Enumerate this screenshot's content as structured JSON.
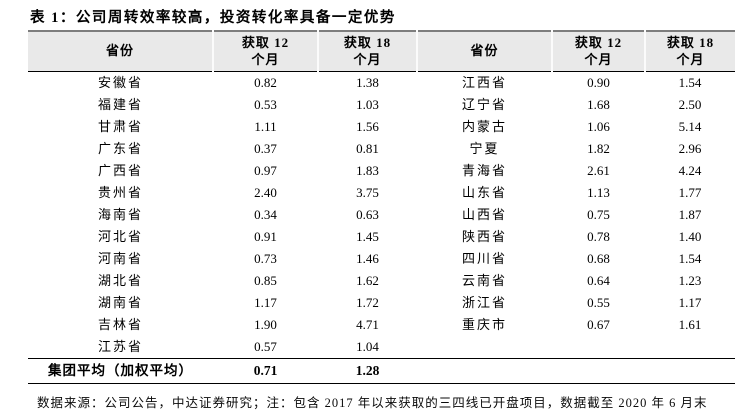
{
  "title": "表 1：公司周转效率较高，投资转化率具备一定优势",
  "table": {
    "headers": [
      "省份",
      "获取 12\n个月",
      "获取 18\n个月",
      "省份",
      "获取 12\n个月",
      "获取 18\n个月"
    ],
    "rows": [
      [
        "安徽省",
        "0.82",
        "1.38",
        "江西省",
        "0.90",
        "1.54"
      ],
      [
        "福建省",
        "0.53",
        "1.03",
        "辽宁省",
        "1.68",
        "2.50"
      ],
      [
        "甘肃省",
        "1.11",
        "1.56",
        "内蒙古",
        "1.06",
        "5.14"
      ],
      [
        "广东省",
        "0.37",
        "0.81",
        "宁夏",
        "1.82",
        "2.96"
      ],
      [
        "广西省",
        "0.97",
        "1.83",
        "青海省",
        "2.61",
        "4.24"
      ],
      [
        "贵州省",
        "2.40",
        "3.75",
        "山东省",
        "1.13",
        "1.77"
      ],
      [
        "海南省",
        "0.34",
        "0.63",
        "山西省",
        "0.75",
        "1.87"
      ],
      [
        "河北省",
        "0.91",
        "1.45",
        "陕西省",
        "0.78",
        "1.40"
      ],
      [
        "河南省",
        "0.73",
        "1.46",
        "四川省",
        "0.68",
        "1.54"
      ],
      [
        "湖北省",
        "0.85",
        "1.62",
        "云南省",
        "0.64",
        "1.23"
      ],
      [
        "湖南省",
        "1.17",
        "1.72",
        "浙江省",
        "0.55",
        "1.17"
      ],
      [
        "吉林省",
        "1.90",
        "4.71",
        "重庆市",
        "0.67",
        "1.61"
      ],
      [
        "江苏省",
        "0.57",
        "1.04",
        "",
        "",
        ""
      ]
    ],
    "total_row": {
      "label": "集团平均（加权平均）",
      "value_12m": "0.71",
      "value_18m": "1.28"
    }
  },
  "footnote": "数据来源：公司公告，中达证券研究；注：包含 2017 年以来获取的三四线已开盘项目，数据截至 2020 年 6 月末",
  "colors": {
    "header_bg": "#e9e9e9",
    "rule_top": "#7d7d7d",
    "rule_dark": "#000000"
  }
}
